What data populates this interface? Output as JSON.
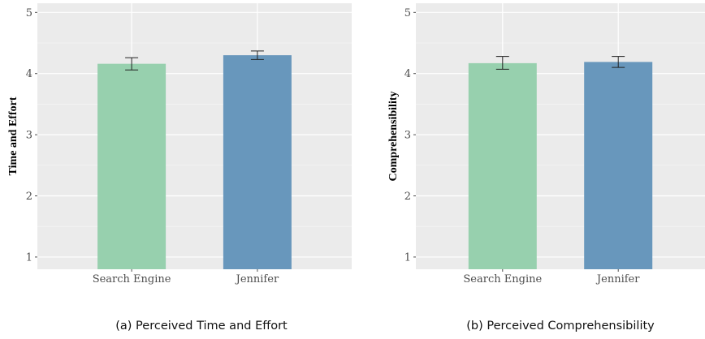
{
  "chart_data": [
    {
      "type": "bar",
      "ylabel": "Time and Effort",
      "categories": [
        "Search Engine",
        "Jennifer"
      ],
      "values": [
        4.16,
        4.3
      ],
      "error": [
        [
          4.06,
          4.26
        ],
        [
          4.23,
          4.37
        ]
      ],
      "ylim": [
        0.8,
        5.15
      ],
      "yticks": [
        1,
        2,
        3,
        4,
        5
      ],
      "colors": [
        "#97d0ae",
        "#6897bc"
      ],
      "grid": true,
      "caption": "(a) Perceived Time and Effort"
    },
    {
      "type": "bar",
      "ylabel": "Comprehensibility",
      "categories": [
        "Search Engine",
        "Jennifer"
      ],
      "values": [
        4.17,
        4.19
      ],
      "error": [
        [
          4.07,
          4.28
        ],
        [
          4.1,
          4.28
        ]
      ],
      "ylim": [
        0.8,
        5.15
      ],
      "yticks": [
        1,
        2,
        3,
        4,
        5
      ],
      "colors": [
        "#97d0ae",
        "#6897bc"
      ],
      "grid": true,
      "caption": "(b) Perceived Comprehensibility"
    }
  ]
}
